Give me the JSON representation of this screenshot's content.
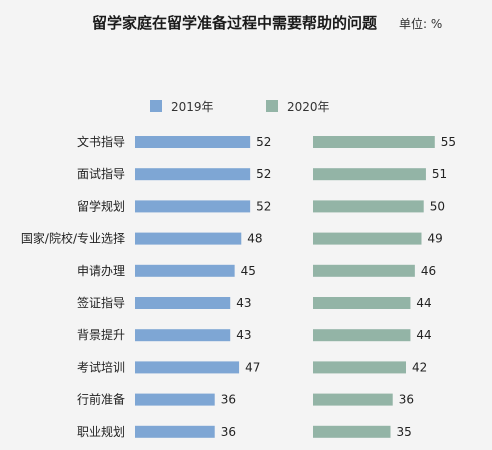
{
  "chart_data": {
    "type": "bar",
    "title": "留学家庭在留学准备过程中需要帮助的问题",
    "unit_label": "单位: %",
    "categories": [
      "文书指导",
      "面试指导",
      "留学规划",
      "国家/院校/专业选择",
      "申请办理",
      "签证指导",
      "背景提升",
      "考试培训",
      "行前准备",
      "职业规划"
    ],
    "series": [
      {
        "name": "2019年",
        "color": "#7ea6d4",
        "values": [
          52,
          52,
          52,
          48,
          45,
          43,
          43,
          47,
          36,
          36
        ]
      },
      {
        "name": "2020年",
        "color": "#93b4a6",
        "values": [
          55,
          51,
          50,
          49,
          46,
          44,
          44,
          42,
          36,
          35
        ]
      }
    ],
    "xlim": [
      0,
      56
    ],
    "grid": false,
    "legend_position": "top"
  }
}
